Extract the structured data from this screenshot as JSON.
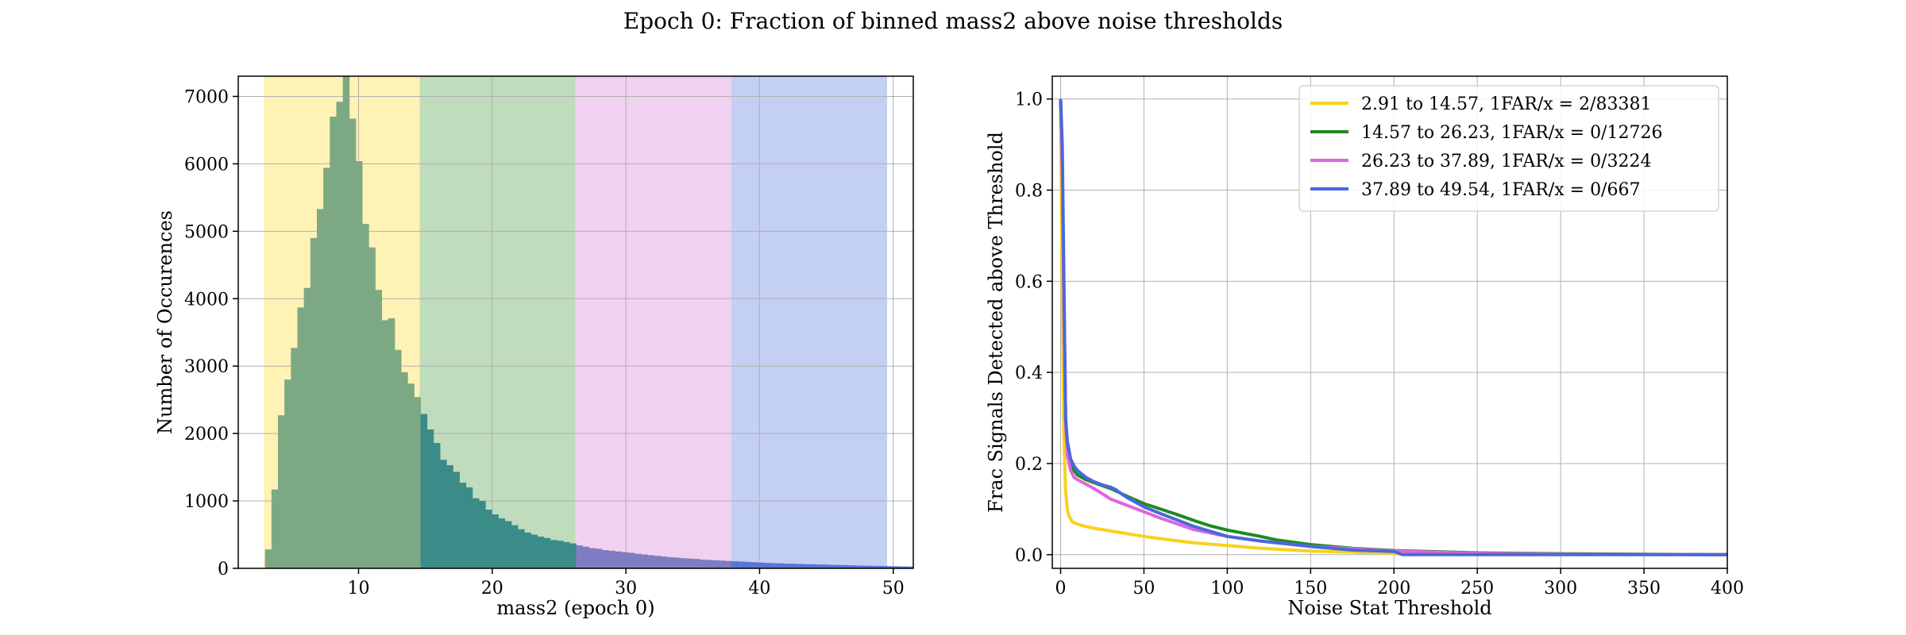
{
  "figure": {
    "suptitle": "Epoch 0: Fraction of binned mass2 above noise thresholds"
  },
  "colors": {
    "band_1": "#f7d21e",
    "band_2": "#208a20",
    "band_3": "#dd66dd",
    "band_4": "#4a68db",
    "hist_fill": "#7da884",
    "grid": "#b0b0b0"
  },
  "chart_data": [
    {
      "type": "bar",
      "subtype": "histogram",
      "xlabel": "mass2 (epoch 0)",
      "ylabel": "Number of Occurences",
      "xlim": [
        1,
        51.5
      ],
      "ylim": [
        0,
        7300
      ],
      "xticks": [
        "10",
        "20",
        "30",
        "40",
        "50"
      ],
      "yticks": [
        "0",
        "1000",
        "2000",
        "3000",
        "4000",
        "5000",
        "6000",
        "7000"
      ],
      "grid": true,
      "bin_width": 0.485,
      "bin_start": 3.0,
      "values": [
        280,
        1170,
        2270,
        2800,
        3270,
        3870,
        4160,
        4900,
        5330,
        5940,
        6700,
        6920,
        7300,
        6670,
        6040,
        5110,
        4760,
        4130,
        3680,
        3710,
        3240,
        2910,
        2740,
        2540,
        2290,
        2060,
        1860,
        1610,
        1530,
        1430,
        1270,
        1200,
        1040,
        1000,
        870,
        800,
        740,
        700,
        640,
        580,
        530,
        500,
        470,
        450,
        420,
        410,
        390,
        370,
        340,
        320,
        300,
        290,
        270,
        260,
        250,
        240,
        230,
        215,
        205,
        195,
        185,
        175,
        165,
        160,
        150,
        145,
        140,
        130,
        125,
        120,
        115,
        110,
        105,
        100,
        95,
        90,
        85,
        80,
        77,
        74,
        70,
        68,
        65,
        62,
        60,
        57,
        55,
        52,
        50,
        48,
        45,
        42,
        40,
        38,
        36,
        34,
        32,
        30,
        28,
        26
      ],
      "bands": [
        {
          "from": 2.91,
          "to": 14.57,
          "color": "#fff2b5"
        },
        {
          "from": 14.57,
          "to": 26.23,
          "color": "#bfdcbd"
        },
        {
          "from": 26.23,
          "to": 37.89,
          "color": "#f1d1f0"
        },
        {
          "from": 37.89,
          "to": 49.54,
          "color": "#c4d0f3"
        }
      ],
      "band_hist_colors": [
        "#7da884",
        "#3b8c89",
        "#7f7cc4",
        "#5b74d6"
      ]
    },
    {
      "type": "line",
      "xlabel": "Noise Stat Threshold",
      "ylabel": "Frac Signals Detected above Threshold",
      "xlim": [
        -5,
        400
      ],
      "ylim": [
        -0.03,
        1.05
      ],
      "xticks": [
        "0",
        "50",
        "100",
        "150",
        "200",
        "250",
        "300",
        "350",
        "400"
      ],
      "yticks": [
        "0.0",
        "0.2",
        "0.4",
        "0.6",
        "0.8",
        "1.0"
      ],
      "grid": true,
      "legend_position": "top-right",
      "series": [
        {
          "name": "2.91 to 14.57, 1FAR/x = 2/83381",
          "color": "#f7d21e",
          "x": [
            0,
            1,
            2,
            3,
            4,
            5,
            7,
            10,
            15,
            20,
            30,
            40,
            50,
            60,
            80,
            100,
            120,
            150,
            200,
            250,
            300,
            350,
            400
          ],
          "y": [
            1.0,
            0.55,
            0.25,
            0.14,
            0.1,
            0.085,
            0.072,
            0.067,
            0.062,
            0.058,
            0.052,
            0.046,
            0.04,
            0.035,
            0.026,
            0.02,
            0.014,
            0.008,
            0.003,
            0.001,
            0.0005,
            0.0002,
            0.0
          ]
        },
        {
          "name": "14.57 to 26.23, 1FAR/x = 0/12726",
          "color": "#208a20",
          "x": [
            0,
            1,
            2,
            3,
            4,
            6,
            8,
            10,
            15,
            20,
            30,
            40,
            50,
            60,
            70,
            80,
            90,
            100,
            120,
            130,
            150,
            175,
            200,
            250,
            300,
            350,
            400
          ],
          "y": [
            1.0,
            0.85,
            0.55,
            0.3,
            0.24,
            0.2,
            0.185,
            0.175,
            0.165,
            0.158,
            0.145,
            0.128,
            0.112,
            0.1,
            0.088,
            0.075,
            0.063,
            0.054,
            0.04,
            0.032,
            0.022,
            0.014,
            0.009,
            0.004,
            0.002,
            0.001,
            0.0
          ]
        },
        {
          "name": "26.23 to 37.89, 1FAR/x = 0/3224",
          "color": "#dd66dd",
          "x": [
            0,
            1,
            2,
            3,
            4,
            6,
            8,
            10,
            15,
            20,
            30,
            40,
            50,
            60,
            80,
            100,
            120,
            150,
            200,
            250,
            300,
            350,
            400
          ],
          "y": [
            1.0,
            0.84,
            0.54,
            0.29,
            0.22,
            0.185,
            0.17,
            0.165,
            0.155,
            0.145,
            0.122,
            0.108,
            0.094,
            0.08,
            0.055,
            0.04,
            0.03,
            0.018,
            0.008,
            0.003,
            0.001,
            0.0005,
            0.0
          ]
        },
        {
          "name": "37.89 to 49.54, 1FAR/x = 0/667",
          "color": "#4a68db",
          "x": [
            0,
            1,
            2,
            3,
            4,
            6,
            8,
            10,
            15,
            20,
            25,
            30,
            33,
            36,
            40,
            50,
            60,
            80,
            100,
            120,
            150,
            175,
            200,
            205,
            250,
            300,
            350,
            400
          ],
          "y": [
            1.0,
            0.9,
            0.6,
            0.3,
            0.25,
            0.21,
            0.195,
            0.185,
            0.17,
            0.16,
            0.153,
            0.148,
            0.143,
            0.135,
            0.125,
            0.105,
            0.09,
            0.062,
            0.04,
            0.03,
            0.018,
            0.01,
            0.007,
            0.0,
            0.0,
            0.0,
            0.0,
            0.0
          ]
        }
      ]
    }
  ]
}
